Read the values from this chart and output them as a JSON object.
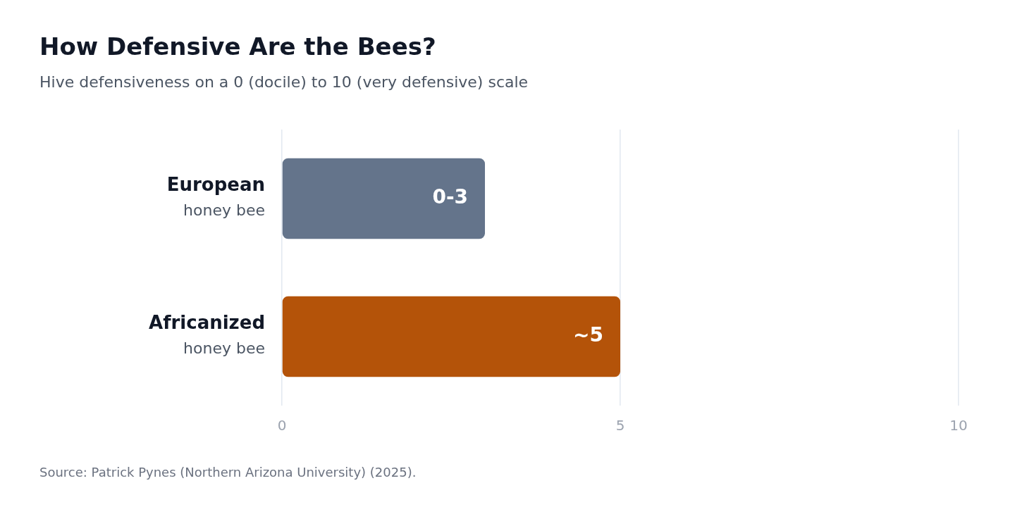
{
  "chart_data": {
    "type": "bar",
    "orientation": "horizontal",
    "title": "How Defensive Are the Bees?",
    "subtitle": "Hive defensiveness on a 0 (docile) to 10 (very defensive) scale",
    "categories": [
      "European\nhoney bee",
      "Africanized\nhoney bee"
    ],
    "values": [
      3,
      5
    ],
    "colors": [
      "#64748b",
      "#b45309"
    ],
    "value_labels": [
      "0-3",
      "~5"
    ],
    "xlim": [
      0,
      10
    ],
    "xticks": [
      0,
      5,
      10
    ],
    "grid": "x",
    "annotations": [
      "Source: Patrick Pynes (Northern Arizona University) (2025)."
    ]
  }
}
